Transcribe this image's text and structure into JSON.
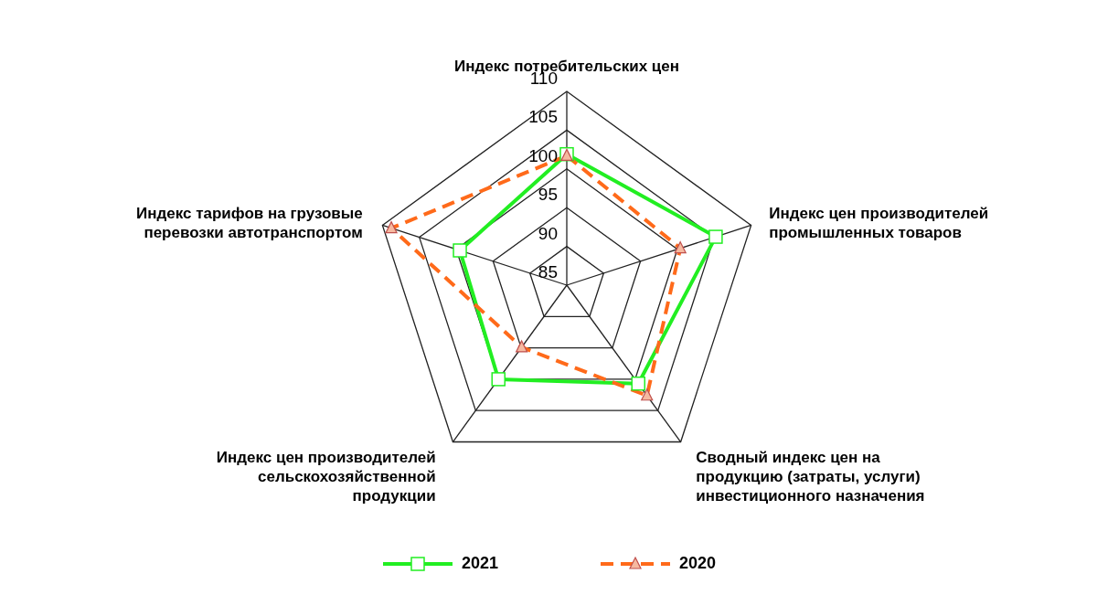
{
  "chart_data": {
    "type": "radar",
    "categories": [
      "Индекс потребительских цен",
      "Индекс цен производителей промышленных товаров",
      "Сводный индекс цен на продукцию (затраты, услуги) инвестиционного назначения",
      "Индекс цен производителей сельскохозяйственной продукции",
      "Индекс тарифов на грузовые перевозки автотранспортом"
    ],
    "series": [
      {
        "name": "2021",
        "color": "#22ee22",
        "marker": "square",
        "line_style": "solid",
        "values": [
          101.9,
          105.2,
          100.7,
          100.0,
          99.5
        ]
      },
      {
        "name": "2020",
        "color": "#ff6a1a",
        "marker": "triangle",
        "line_style": "dashed",
        "values": [
          101.7,
          100.4,
          102.6,
          94.9,
          108.8
        ]
      }
    ],
    "ylim": [
      85,
      110
    ],
    "yticks": [
      85,
      90,
      95,
      100,
      105,
      110
    ],
    "grid": true,
    "legend": "bottom"
  }
}
